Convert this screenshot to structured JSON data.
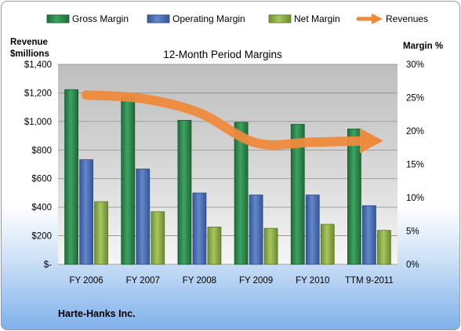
{
  "chart_data": {
    "type": "bar",
    "title": "12-Month Period Margins",
    "company": "Harte-Hanks Inc.",
    "left_axis": {
      "title_line1": "Revenue",
      "title_line2": "$millions",
      "ticks": [
        "$-",
        "$200",
        "$400",
        "$600",
        "$800",
        "$1,000",
        "$1,200",
        "$1,400"
      ],
      "range": [
        0,
        1400
      ]
    },
    "right_axis": {
      "title": "Margin %",
      "ticks": [
        "0%",
        "5%",
        "10%",
        "15%",
        "20%",
        "25%",
        "30%"
      ],
      "range": [
        0,
        30
      ]
    },
    "categories": [
      "FY 2006",
      "FY 2007",
      "FY 2008",
      "FY 2009",
      "FY 2010",
      "TTM 9-2011"
    ],
    "series": [
      {
        "name": "Gross Margin",
        "axis": "right",
        "color": "#2e8b4e",
        "values": [
          26.2,
          25.2,
          21.6,
          21.3,
          21.0,
          20.3
        ]
      },
      {
        "name": "Operating Margin",
        "axis": "right",
        "color": "#4f73b8",
        "values": [
          15.7,
          14.3,
          10.7,
          10.4,
          10.4,
          8.8
        ]
      },
      {
        "name": "Net Margin",
        "axis": "right",
        "color": "#8fb24a",
        "values": [
          9.4,
          7.9,
          5.6,
          5.4,
          6.0,
          5.1
        ]
      },
      {
        "name": "Revenues",
        "axis": "left",
        "type": "line",
        "color": "#ee8a3c",
        "values": [
          1185,
          1160,
          1060,
          850,
          855,
          865
        ]
      }
    ],
    "grid": true,
    "legend": "top"
  }
}
